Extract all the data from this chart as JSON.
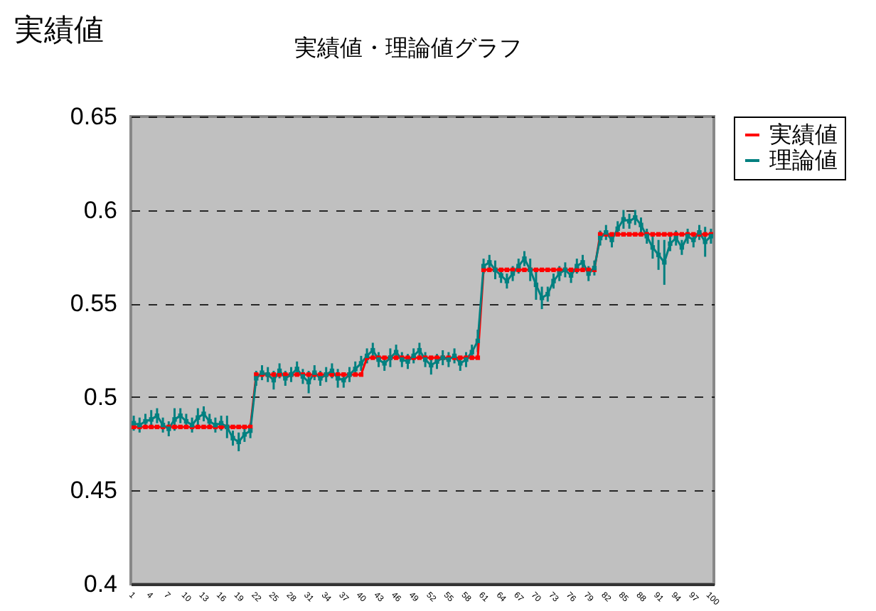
{
  "chart_data": {
    "type": "line",
    "title": "実績値・理論値グラフ",
    "ylabel": "実績値",
    "categories": [
      "1",
      null,
      null,
      "4",
      null,
      null,
      "7",
      null,
      null,
      "10",
      null,
      null,
      "13",
      null,
      null,
      "16",
      null,
      null,
      "19",
      null,
      null,
      "22",
      null,
      null,
      "25",
      null,
      null,
      "28",
      null,
      null,
      "31",
      null,
      null,
      "34",
      null,
      null,
      "37",
      null,
      null,
      "40",
      null,
      null,
      "43",
      null,
      null,
      "46",
      null,
      null,
      "49",
      null,
      null,
      "52",
      null,
      null,
      "55",
      null,
      null,
      "58",
      null,
      null,
      "61",
      null,
      null,
      "64",
      null,
      null,
      "67",
      null,
      null,
      "70",
      null,
      null,
      "73",
      null,
      null,
      "76",
      null,
      null,
      "79",
      null,
      null,
      "82",
      null,
      null,
      "85",
      null,
      null,
      "88",
      null,
      null,
      "91",
      null,
      null,
      "94",
      null,
      null,
      "97",
      null,
      null,
      "100"
    ],
    "series": [
      {
        "name": "実績値",
        "color": "#ff0000",
        "values": [
          0.484,
          0.484,
          0.484,
          0.484,
          0.484,
          0.484,
          0.484,
          0.484,
          0.484,
          0.484,
          0.484,
          0.484,
          0.484,
          0.484,
          0.484,
          0.484,
          0.484,
          0.484,
          0.484,
          0.484,
          0.484,
          0.512,
          0.512,
          0.512,
          0.512,
          0.512,
          0.512,
          0.512,
          0.512,
          0.512,
          0.512,
          0.512,
          0.512,
          0.512,
          0.512,
          0.512,
          0.512,
          0.512,
          0.512,
          0.512,
          0.521,
          0.521,
          0.521,
          0.521,
          0.521,
          0.521,
          0.521,
          0.521,
          0.521,
          0.521,
          0.521,
          0.521,
          0.521,
          0.521,
          0.521,
          0.521,
          0.521,
          0.521,
          0.521,
          0.521,
          0.568,
          0.568,
          0.568,
          0.568,
          0.568,
          0.568,
          0.568,
          0.568,
          0.568,
          0.568,
          0.568,
          0.568,
          0.568,
          0.568,
          0.568,
          0.568,
          0.568,
          0.568,
          0.568,
          0.568,
          0.587,
          0.587,
          0.587,
          0.587,
          0.587,
          0.587,
          0.587,
          0.587,
          0.587,
          0.587,
          0.587,
          0.587,
          0.587,
          0.587,
          0.587,
          0.587,
          0.587,
          0.587,
          0.587,
          0.587
        ]
      },
      {
        "name": "理論値",
        "color": "#008080",
        "values": [
          0.486,
          0.485,
          0.487,
          0.488,
          0.49,
          0.485,
          0.483,
          0.488,
          0.49,
          0.487,
          0.485,
          0.489,
          0.491,
          0.487,
          0.485,
          0.486,
          0.484,
          0.478,
          0.476,
          0.48,
          0.482,
          0.51,
          0.513,
          0.512,
          0.509,
          0.514,
          0.51,
          0.512,
          0.515,
          0.511,
          0.508,
          0.513,
          0.51,
          0.512,
          0.514,
          0.51,
          0.509,
          0.512,
          0.515,
          0.518,
          0.522,
          0.525,
          0.52,
          0.518,
          0.521,
          0.524,
          0.52,
          0.519,
          0.522,
          0.525,
          0.52,
          0.517,
          0.519,
          0.521,
          0.52,
          0.522,
          0.518,
          0.52,
          0.524,
          0.53,
          0.57,
          0.572,
          0.568,
          0.565,
          0.562,
          0.566,
          0.57,
          0.574,
          0.568,
          0.56,
          0.553,
          0.555,
          0.562,
          0.566,
          0.568,
          0.565,
          0.57,
          0.572,
          0.566,
          0.569,
          0.585,
          0.588,
          0.584,
          0.59,
          0.595,
          0.594,
          0.596,
          0.592,
          0.586,
          0.58,
          0.576,
          0.572,
          0.582,
          0.585,
          0.58,
          0.586,
          0.584,
          0.588,
          0.583,
          0.586
        ],
        "errors": [
          0.004,
          0.004,
          0.004,
          0.005,
          0.004,
          0.004,
          0.004,
          0.006,
          0.004,
          0.004,
          0.004,
          0.005,
          0.004,
          0.004,
          0.004,
          0.004,
          0.006,
          0.004,
          0.005,
          0.004,
          0.004,
          0.004,
          0.004,
          0.004,
          0.005,
          0.004,
          0.004,
          0.004,
          0.004,
          0.004,
          0.006,
          0.004,
          0.004,
          0.004,
          0.004,
          0.005,
          0.004,
          0.004,
          0.004,
          0.004,
          0.004,
          0.004,
          0.004,
          0.004,
          0.005,
          0.004,
          0.004,
          0.004,
          0.004,
          0.004,
          0.004,
          0.005,
          0.004,
          0.004,
          0.004,
          0.004,
          0.004,
          0.004,
          0.004,
          0.006,
          0.004,
          0.004,
          0.005,
          0.004,
          0.004,
          0.004,
          0.004,
          0.004,
          0.006,
          0.008,
          0.006,
          0.004,
          0.004,
          0.004,
          0.004,
          0.004,
          0.004,
          0.004,
          0.004,
          0.004,
          0.004,
          0.004,
          0.004,
          0.004,
          0.005,
          0.004,
          0.004,
          0.004,
          0.004,
          0.006,
          0.008,
          0.012,
          0.004,
          0.004,
          0.004,
          0.004,
          0.004,
          0.004,
          0.008,
          0.004
        ]
      }
    ],
    "ylim": [
      0.4,
      0.65
    ],
    "yticks": [
      0.4,
      0.45,
      0.5,
      0.55,
      0.6,
      0.65
    ],
    "grid": "y",
    "legend": "right",
    "marker": "square"
  }
}
